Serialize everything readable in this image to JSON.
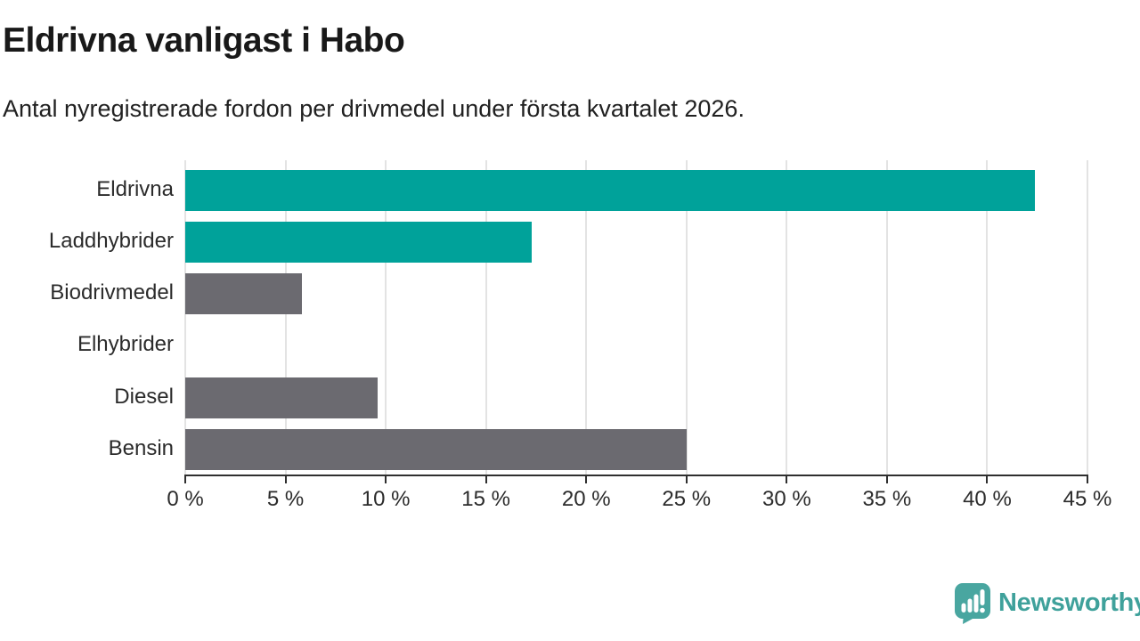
{
  "header": {
    "title": "Eldrivna vanligast i Habo",
    "subtitle": "Antal nyregistrerade fordon per drivmedel under första kvartalet 2026."
  },
  "chart_data": {
    "type": "bar",
    "orientation": "horizontal",
    "title": "Eldrivna vanligast i Habo",
    "subtitle": "Antal nyregistrerade fordon per drivmedel under första kvartalet 2026.",
    "categories": [
      "Eldrivna",
      "Laddhybrider",
      "Biodrivmedel",
      "Elhybrider",
      "Diesel",
      "Bensin"
    ],
    "values": [
      42.4,
      17.3,
      5.8,
      0,
      9.6,
      25
    ],
    "bar_colors": [
      "#00a29a",
      "#00a29a",
      "#6b6a70",
      "#6b6a70",
      "#6b6a70",
      "#6b6a70"
    ],
    "xlim": [
      0,
      45
    ],
    "xticks": [
      0,
      5,
      10,
      15,
      20,
      25,
      30,
      35,
      40,
      45
    ],
    "xtick_labels": [
      "0 %",
      "5 %",
      "10 %",
      "15 %",
      "20 %",
      "25 %",
      "30 %",
      "35 %",
      "40 %",
      "45 %"
    ],
    "xlabel": "",
    "ylabel": "",
    "grid": "vertical",
    "legend": "none"
  },
  "colors": {
    "accent_teal": "#00a29a",
    "neutral_gray": "#6b6a70",
    "gridline": "#e3e3e3",
    "axis": "#2f2f2f",
    "title_text": "#191919",
    "label_text": "#2b2b2b",
    "logo_teal": "#49a6a0",
    "logo_text_teal": "#3fa19b"
  },
  "footer": {
    "brand": "Newsworthy"
  }
}
